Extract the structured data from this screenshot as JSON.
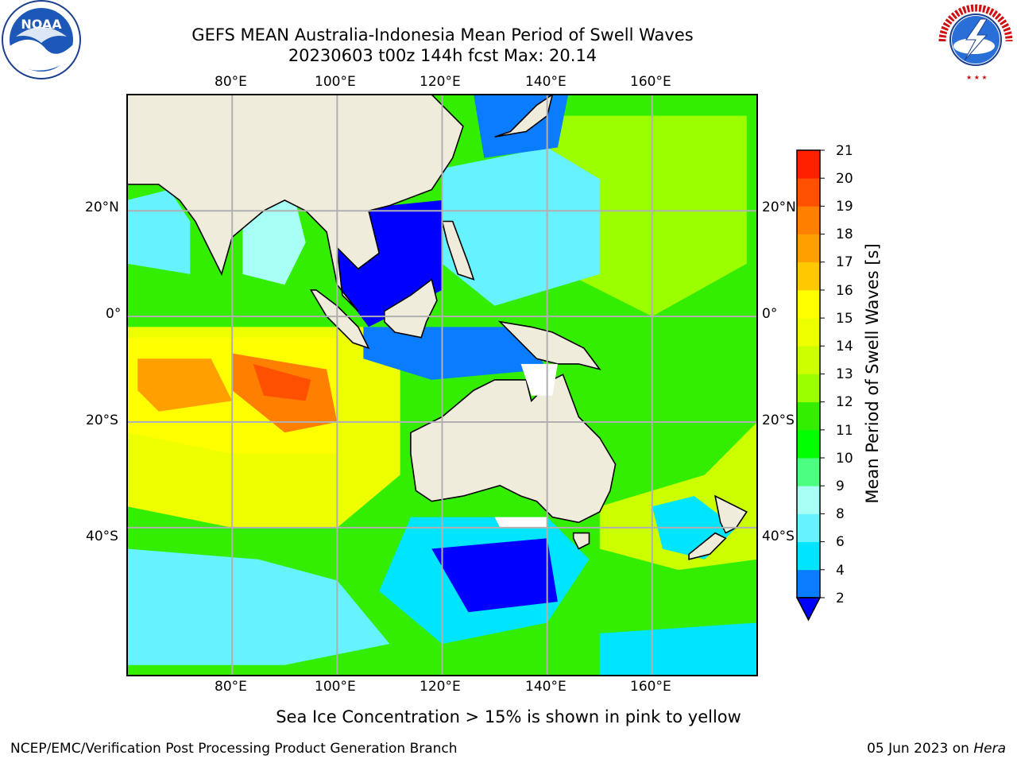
{
  "title": {
    "line1": "GEFS MEAN Australia-Indonesia Mean Period of Swell Waves",
    "line2": "20230603 t00z 144h fcst   Max: 20.14"
  },
  "logos": {
    "left": {
      "name": "noaa-logo",
      "text": "NOAA"
    },
    "right": {
      "name": "nws-logo",
      "text": "NATIONAL WEATHER SERVICE"
    }
  },
  "axes": {
    "lon_top": [
      "80°E",
      "100°E",
      "120°E",
      "140°E",
      "160°E"
    ],
    "lon_bottom": [
      "80°E",
      "100°E",
      "120°E",
      "140°E",
      "160°E"
    ],
    "lat_left": [
      "20°N",
      "0°",
      "20°S",
      "40°S"
    ],
    "lat_right": [
      "20°N",
      "0°",
      "20°S",
      "40°S"
    ],
    "lon_values": [
      80,
      100,
      120,
      140,
      160
    ],
    "lat_values": [
      20,
      0,
      -20,
      -40
    ],
    "extent": {
      "lon_min": 60,
      "lon_max": 180,
      "lat_min": -68,
      "lat_max": 42
    }
  },
  "colorbar": {
    "label": "Mean Period of Swell Waves [s]",
    "ticks": [
      "2",
      "4",
      "6",
      "8",
      "9",
      "10",
      "11",
      "12",
      "13",
      "14",
      "15",
      "16",
      "17",
      "18",
      "19",
      "20",
      "21"
    ],
    "colors": [
      "#0a7cff",
      "#00e5ff",
      "#66f2ff",
      "#a8fff5",
      "#4dff80",
      "#00ff00",
      "#33ee00",
      "#9cff00",
      "#ccff00",
      "#eeff00",
      "#ffff00",
      "#ffc800",
      "#ffa000",
      "#ff8000",
      "#ff5000",
      "#ff2000"
    ],
    "under_color": "#0000ff"
  },
  "subtitle": "Sea Ice Concentration > 15% is shown in pink to yellow",
  "footer": {
    "left": "NCEP/EMC/Verification Post Processing Product Generation Branch",
    "right_date": "05 Jun 2023 on ",
    "right_host": "Hera"
  }
}
